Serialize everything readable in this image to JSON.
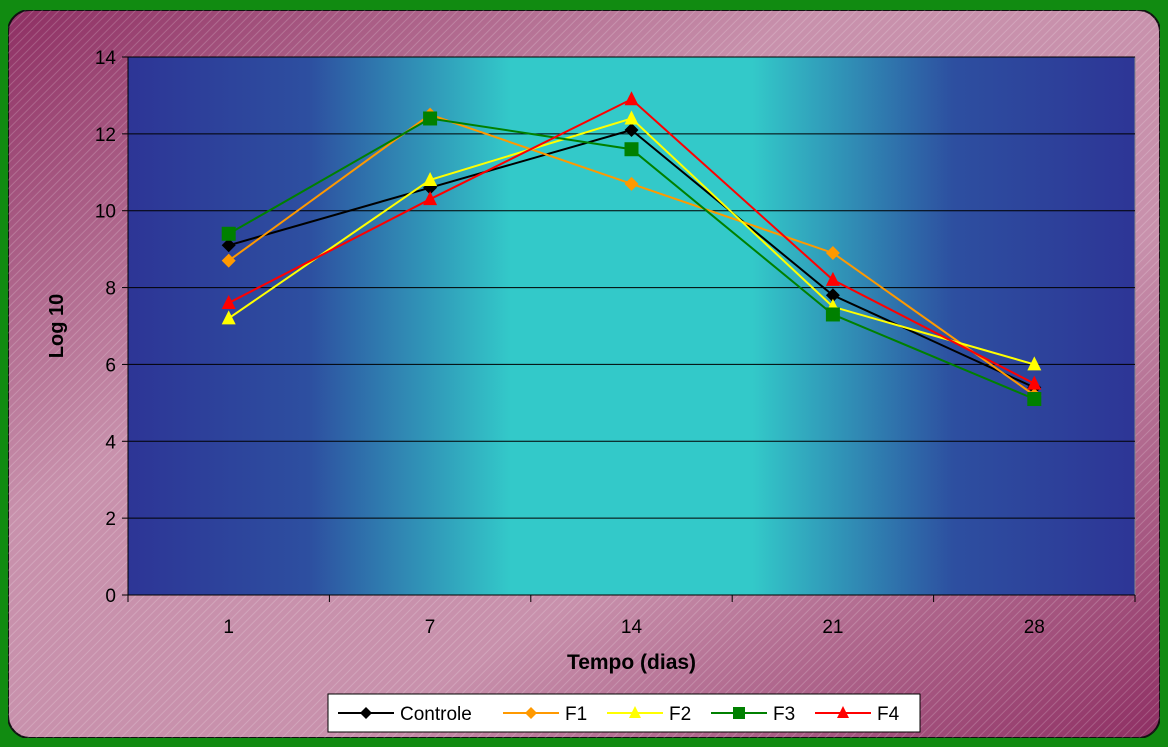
{
  "chart_data": {
    "type": "line",
    "title": "",
    "xlabel": "Tempo (dias)",
    "ylabel": "Log 10",
    "categories": [
      "1",
      "7",
      "14",
      "21",
      "28"
    ],
    "ylim": [
      0,
      14
    ],
    "yticks": [
      0,
      2,
      4,
      6,
      8,
      10,
      12,
      14
    ],
    "grid": true,
    "legend_position": "bottom",
    "series": [
      {
        "name": "Controle",
        "color": "#000000",
        "marker": "diamond",
        "values": [
          9.1,
          10.6,
          12.1,
          7.8,
          5.4
        ]
      },
      {
        "name": "F1",
        "color": "#ff9900",
        "marker": "diamond",
        "values": [
          8.7,
          12.5,
          10.7,
          8.9,
          5.2
        ]
      },
      {
        "name": "F2",
        "color": "#ffff00",
        "marker": "triangle",
        "values": [
          7.2,
          10.8,
          12.4,
          7.5,
          6.0
        ]
      },
      {
        "name": "F3",
        "color": "#008000",
        "marker": "square",
        "values": [
          9.4,
          12.4,
          11.6,
          7.3,
          5.1
        ]
      },
      {
        "name": "F4",
        "color": "#ff0000",
        "marker": "triangle",
        "values": [
          7.6,
          10.3,
          12.9,
          8.2,
          5.5
        ]
      }
    ]
  }
}
